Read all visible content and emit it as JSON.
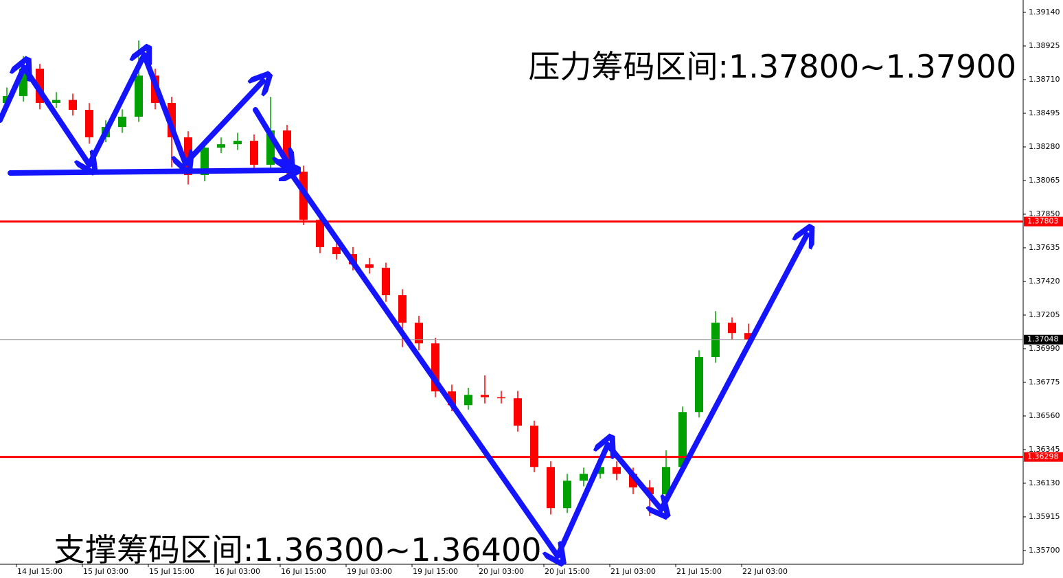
{
  "chart_data": {
    "type": "candlestick",
    "annotations": [
      "压力筹码区间:1.37800~1.37900",
      "支撑筹码区间:1.36300~1.36400"
    ],
    "open": [
      1.3856,
      1.38605,
      1.3878,
      1.38561,
      1.3858,
      1.38517,
      1.38341,
      1.38407,
      1.38473,
      1.38736,
      1.38561,
      1.38341,
      1.381,
      1.38275,
      1.38297,
      1.38319,
      1.38166,
      1.38385,
      1.38122,
      1.37814,
      1.37639,
      1.37595,
      1.37529,
      1.37507,
      1.37332,
      1.37156,
      1.37024,
      1.36717,
      1.36629,
      1.36695,
      1.3668,
      1.36673,
      1.36498,
      1.36234,
      1.35971,
      1.36146,
      1.3619,
      1.36234,
      1.3619,
      1.36103,
      1.36059,
      1.36234,
      1.36585,
      1.36937,
      1.37156,
      1.3709
    ],
    "high": [
      1.3866,
      1.3886,
      1.3881,
      1.3863,
      1.3862,
      1.3856,
      1.3845,
      1.3852,
      1.3896,
      1.3878,
      1.386,
      1.3838,
      1.3832,
      1.3834,
      1.3837,
      1.3836,
      1.386,
      1.3842,
      1.3816,
      1.3785,
      1.3768,
      1.3764,
      1.3757,
      1.3754,
      1.3737,
      1.372,
      1.3706,
      1.3676,
      1.3674,
      1.3682,
      1.3672,
      1.3672,
      1.3653,
      1.3627,
      1.3619,
      1.3623,
      1.3628,
      1.3627,
      1.3623,
      1.3615,
      1.3634,
      1.3662,
      1.3698,
      1.3723,
      1.3719,
      1.3715
    ],
    "low": [
      1.3852,
      1.3857,
      1.3852,
      1.3853,
      1.3848,
      1.383,
      1.3831,
      1.3837,
      1.3844,
      1.3852,
      1.3815,
      1.3804,
      1.3806,
      1.3824,
      1.3826,
      1.3813,
      1.3813,
      1.3808,
      1.3778,
      1.376,
      1.3756,
      1.3749,
      1.3747,
      1.3729,
      1.37,
      1.3698,
      1.3668,
      1.3659,
      1.366,
      1.3664,
      1.3664,
      1.3646,
      1.362,
      1.3593,
      1.3594,
      1.3611,
      1.3616,
      1.3615,
      1.3606,
      1.3592,
      1.3602,
      1.362,
      1.3655,
      1.369,
      1.3705,
      1.37
    ],
    "close": [
      1.38605,
      1.3878,
      1.38561,
      1.3858,
      1.38517,
      1.38341,
      1.38407,
      1.38473,
      1.38736,
      1.38561,
      1.38341,
      1.381,
      1.38275,
      1.38297,
      1.38319,
      1.38166,
      1.38385,
      1.38122,
      1.37814,
      1.37639,
      1.37595,
      1.37529,
      1.37507,
      1.37332,
      1.37156,
      1.37024,
      1.36717,
      1.36629,
      1.36695,
      1.3668,
      1.36673,
      1.36498,
      1.36234,
      1.35971,
      1.36146,
      1.3619,
      1.36234,
      1.3619,
      1.36103,
      1.36059,
      1.36234,
      1.36585,
      1.36937,
      1.37156,
      1.3709,
      1.37048
    ],
    "up_color": "#00a000",
    "down_color": "#ff0000",
    "ylim": [
      1.35612,
      1.39219
    ],
    "yticks": [
      {
        "value": 1.3914,
        "label": "1.39140"
      },
      {
        "value": 1.38925,
        "label": "1.38925"
      },
      {
        "value": 1.3871,
        "label": "1.38710"
      },
      {
        "value": 1.38495,
        "label": "1.38495"
      },
      {
        "value": 1.3828,
        "label": "1.38280"
      },
      {
        "value": 1.38065,
        "label": "1.38065"
      },
      {
        "value": 1.3785,
        "label": "1.37850"
      },
      {
        "value": 1.37635,
        "label": "1.37635"
      },
      {
        "value": 1.3742,
        "label": "1.37420"
      },
      {
        "value": 1.37205,
        "label": "1.37205"
      },
      {
        "value": 1.3699,
        "label": "1.36990"
      },
      {
        "value": 1.36775,
        "label": "1.36775"
      },
      {
        "value": 1.3656,
        "label": "1.36560"
      },
      {
        "value": 1.36345,
        "label": "1.36345"
      },
      {
        "value": 1.3613,
        "label": "1.36130"
      },
      {
        "value": 1.35915,
        "label": "1.35915"
      },
      {
        "value": 1.357,
        "label": "1.35700"
      }
    ],
    "xtick_labels": [
      "14 Jul 15:00",
      "15 Jul 03:00",
      "15 Jul 15:00",
      "16 Jul 03:00",
      "16 Jul 15:00",
      "19 Jul 03:00",
      "19 Jul 15:00",
      "20 Jul 03:00",
      "20 Jul 15:00",
      "21 Jul 03:00",
      "21 Jul 15:00",
      "22 Jul 03:00"
    ],
    "hlines": [
      {
        "value": 1.37803,
        "color": "#ff0000"
      },
      {
        "value": 1.36298,
        "color": "#ff0000"
      },
      {
        "value": 1.37048,
        "color": "#000000"
      }
    ]
  }
}
